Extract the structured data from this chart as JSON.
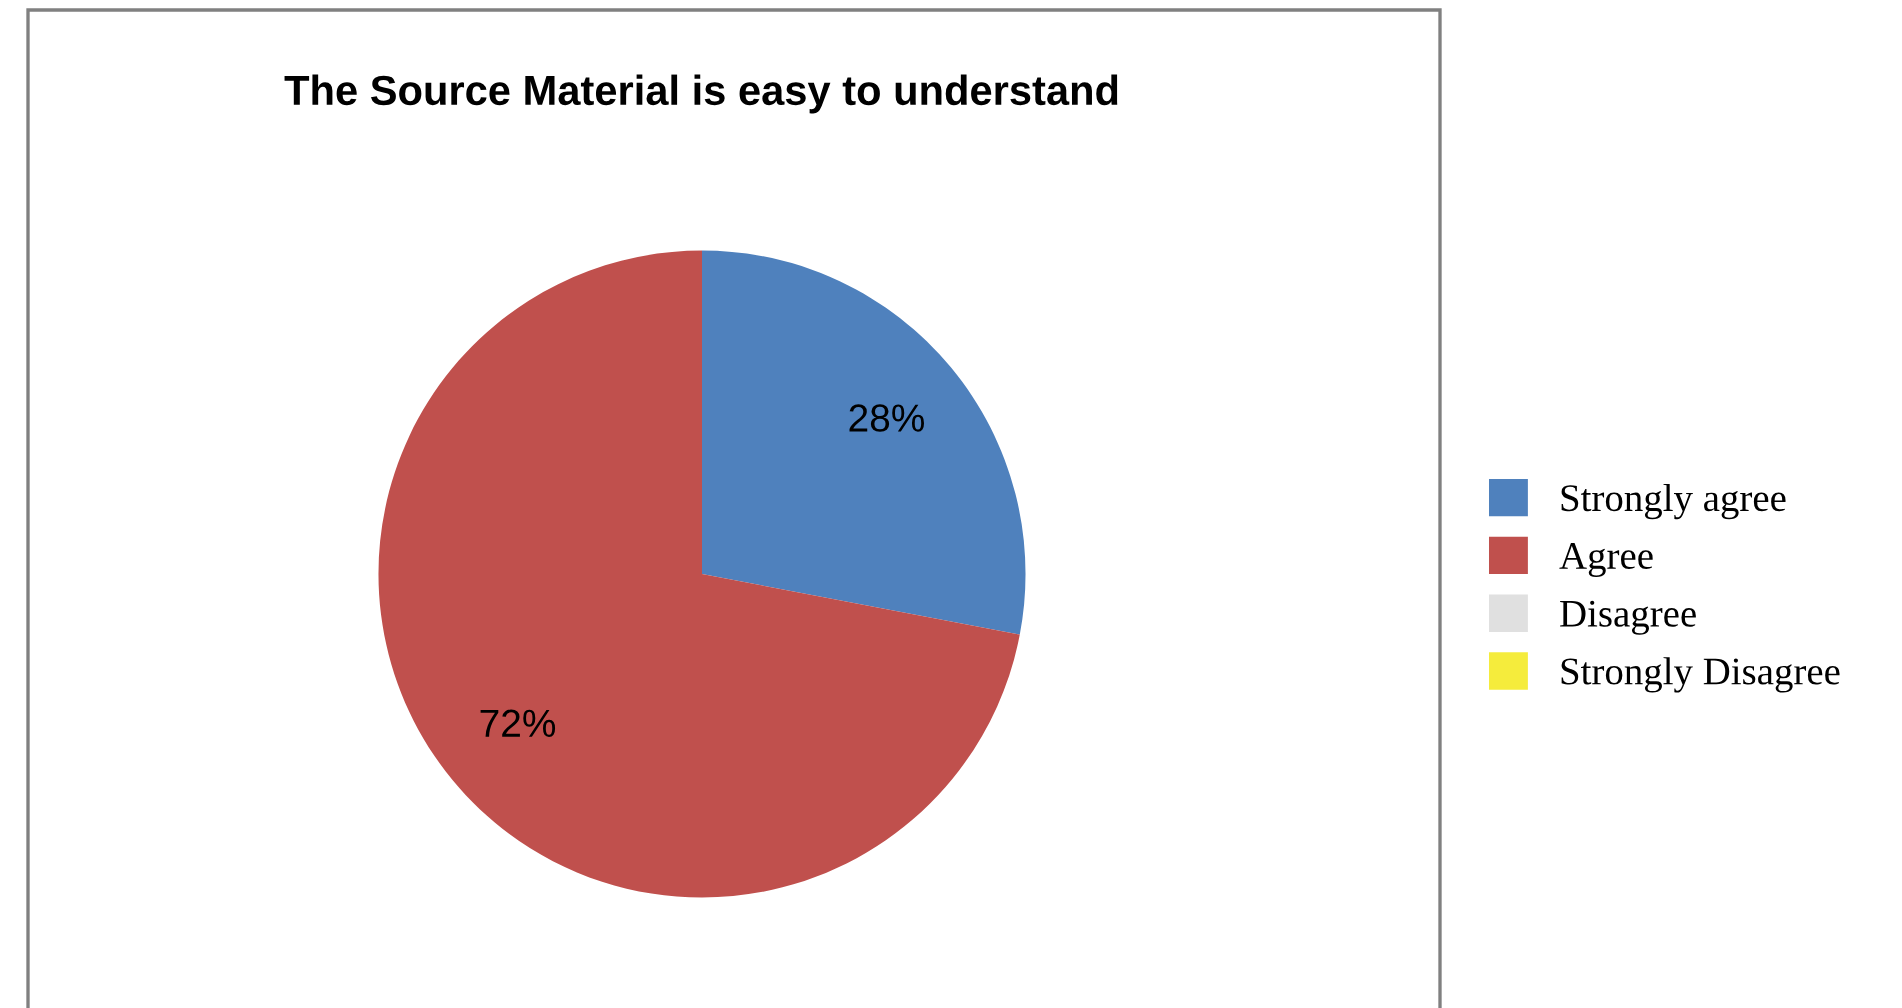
{
  "chart_data": {
    "type": "pie",
    "title": "The Source Material is easy to understand",
    "categories": [
      "Strongly agree",
      "Agree",
      "Disagree",
      "Strongly Disagree"
    ],
    "values": [
      28,
      72,
      0,
      0
    ],
    "colors": [
      "#4f81bd",
      "#c0504d",
      "#e0e0e0",
      "#f5ec3c"
    ],
    "value_labels": [
      "28%",
      "72%",
      null,
      null
    ],
    "legend": "right"
  }
}
